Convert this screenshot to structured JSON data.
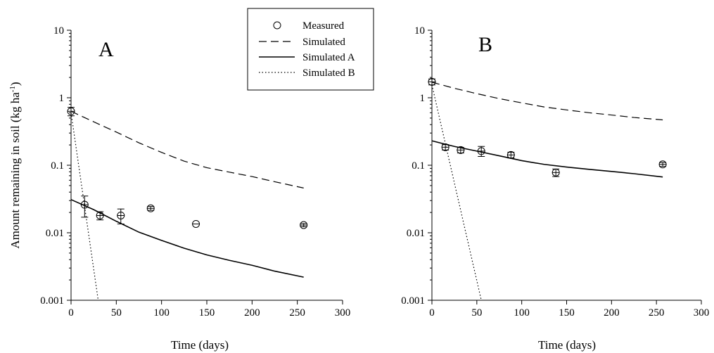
{
  "chart_data": [
    {
      "type": "line",
      "panel_label": "A",
      "xlabel": "Time (days)",
      "ylabel": "Amount remaining in soil (kg ha-1)",
      "ylabel_main": "Amount remaining in soil (kg ha",
      "ylabel_sup": "-1",
      "ylabel_close": ")",
      "xlim": [
        0,
        300
      ],
      "ylim": [
        0.001,
        10
      ],
      "yscale": "log",
      "x_ticks": [
        "0",
        "50",
        "100",
        "150",
        "200",
        "250",
        "300"
      ],
      "y_ticks": [
        "0.001",
        "0.01",
        "0.1",
        "1",
        "10"
      ],
      "grid": false,
      "measured": {
        "name": "Measured",
        "x": [
          0,
          15,
          32,
          55,
          88,
          138,
          257
        ],
        "y": [
          0.63,
          0.026,
          0.018,
          0.018,
          0.023,
          0.0135,
          0.013
        ],
        "err_low": [
          0.54,
          0.017,
          0.0155,
          0.0135,
          0.0215,
          0.0135,
          0.0123
        ],
        "err_high": [
          0.72,
          0.035,
          0.0205,
          0.0225,
          0.0245,
          0.0135,
          0.0137
        ]
      },
      "series": [
        {
          "name": "Simulated",
          "style": "dashed",
          "x": [
            0,
            25,
            50,
            75,
            100,
            125,
            150,
            175,
            200,
            225,
            257
          ],
          "y": [
            0.63,
            0.44,
            0.31,
            0.215,
            0.155,
            0.115,
            0.092,
            0.079,
            0.068,
            0.057,
            0.046
          ]
        },
        {
          "name": "Simulated A",
          "style": "solid",
          "x": [
            0,
            25,
            50,
            75,
            100,
            125,
            150,
            175,
            200,
            225,
            257
          ],
          "y": [
            0.031,
            0.022,
            0.0148,
            0.0102,
            0.0077,
            0.0059,
            0.0047,
            0.0039,
            0.0033,
            0.0027,
            0.0022
          ]
        },
        {
          "name": "Simulated B",
          "style": "dotted",
          "x": [
            0,
            30
          ],
          "y": [
            0.6,
            0.001
          ]
        }
      ]
    },
    {
      "type": "line",
      "panel_label": "B",
      "xlabel": "Time (days)",
      "xlim": [
        0,
        300
      ],
      "ylim": [
        0.001,
        10
      ],
      "yscale": "log",
      "x_ticks": [
        "0",
        "50",
        "100",
        "150",
        "200",
        "250",
        "300"
      ],
      "y_ticks": [
        "0.001",
        "0.01",
        "0.1",
        "1",
        "10"
      ],
      "grid": false,
      "measured": {
        "name": "Measured",
        "x": [
          0,
          15,
          32,
          55,
          88,
          138,
          257
        ],
        "y": [
          1.72,
          0.185,
          0.168,
          0.162,
          0.142,
          0.078,
          0.103
        ],
        "err_low": [
          1.55,
          0.168,
          0.152,
          0.135,
          0.128,
          0.068,
          0.096
        ],
        "err_high": [
          1.9,
          0.202,
          0.184,
          0.19,
          0.156,
          0.088,
          0.11
        ]
      },
      "series": [
        {
          "name": "Simulated",
          "style": "dashed",
          "x": [
            0,
            25,
            50,
            75,
            100,
            125,
            150,
            175,
            200,
            225,
            257
          ],
          "y": [
            1.7,
            1.38,
            1.15,
            0.97,
            0.84,
            0.73,
            0.66,
            0.6,
            0.555,
            0.51,
            0.47
          ]
        },
        {
          "name": "Simulated A",
          "style": "solid",
          "x": [
            0,
            25,
            50,
            75,
            100,
            125,
            150,
            175,
            200,
            225,
            257
          ],
          "y": [
            0.23,
            0.19,
            0.162,
            0.138,
            0.117,
            0.103,
            0.094,
            0.087,
            0.081,
            0.075,
            0.067
          ]
        },
        {
          "name": "Simulated B",
          "style": "dotted",
          "x": [
            0,
            55
          ],
          "y": [
            1.55,
            0.001
          ]
        }
      ]
    }
  ],
  "legend": {
    "placement": "top-center",
    "entries": [
      {
        "label": "Measured",
        "marker": "circle-open"
      },
      {
        "label": "Simulated",
        "line": "dashed"
      },
      {
        "label": "Simulated A",
        "line": "solid"
      },
      {
        "label": "Simulated B",
        "line": "dotted"
      }
    ]
  }
}
